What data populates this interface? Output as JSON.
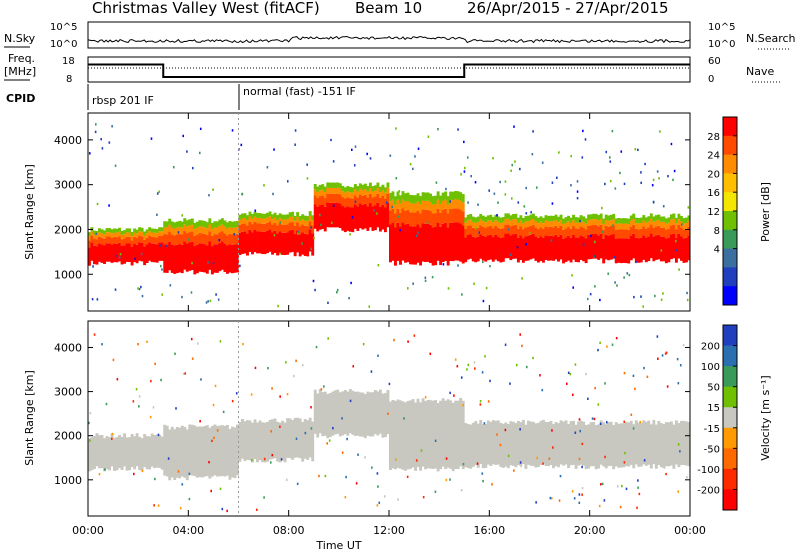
{
  "header": {
    "station": "Christmas Valley West (fitACF)",
    "beam": "Beam 10",
    "date_range": "26/Apr/2015 - 27/Apr/2015"
  },
  "summary_panels": {
    "nsky_label": "N.Sky",
    "nsky_ticks": [
      "10^5",
      "10^0"
    ],
    "nsearch_label": "N.Search",
    "nsearch_ticks": [
      "10^5",
      "10^0"
    ],
    "freq_label": [
      "Freq.",
      "[MHz]"
    ],
    "freq_ticks": [
      "18",
      "8"
    ],
    "nave_label": "Nave",
    "nave_ticks": [
      "60",
      "0"
    ],
    "cpid_label": "CPID",
    "cpid_segments": [
      {
        "label": "rbsp 201 IF",
        "start_hour": 0
      },
      {
        "label": "normal (fast) -151 IF",
        "start_hour": 6
      }
    ],
    "freq_trace": [
      {
        "from_hour": 0,
        "to_hour": 3,
        "mhz": 15
      },
      {
        "from_hour": 3,
        "to_hour": 15,
        "mhz": 10
      },
      {
        "from_hour": 15,
        "to_hour": 24,
        "mhz": 15
      }
    ]
  },
  "chart_data": [
    {
      "type": "heatmap",
      "name": "power",
      "ylabel": "Slant Range [km]",
      "x_ticks": [
        "00:00",
        "04:00",
        "08:00",
        "12:00",
        "16:00",
        "20:00",
        "00:00"
      ],
      "x_hours": [
        0,
        4,
        8,
        12,
        16,
        20,
        24
      ],
      "y_ticks": [
        1000,
        2000,
        3000,
        4000
      ],
      "ylim": [
        180,
        4600
      ],
      "xlim": [
        0,
        24
      ],
      "colorbar": {
        "label": "Power [dB]",
        "ticks": [
          "28",
          "24",
          "20",
          "16",
          "12",
          "8",
          "4"
        ],
        "colors": [
          "#ff0000",
          "#ff4a00",
          "#ff8c00",
          "#ffbf00",
          "#f5e600",
          "#6ec000",
          "#3a9a5a",
          "#3a6fa0",
          "#1f3fbf",
          "#0000ff"
        ]
      },
      "bands": [
        {
          "from_hour": 0,
          "to_hour": 3,
          "lower_km": 1250,
          "upper_km": 2000,
          "level": "high"
        },
        {
          "from_hour": 3,
          "to_hour": 6,
          "lower_km": 1050,
          "upper_km": 2200,
          "level": "high"
        },
        {
          "from_hour": 6,
          "to_hour": 9,
          "lower_km": 1450,
          "upper_km": 2350,
          "level": "high"
        },
        {
          "from_hour": 9,
          "to_hour": 12,
          "lower_km": 2000,
          "upper_km": 3000,
          "level": "high"
        },
        {
          "from_hour": 12,
          "to_hour": 15,
          "lower_km": 1250,
          "upper_km": 2800,
          "level": "high"
        },
        {
          "from_hour": 15,
          "to_hour": 24,
          "lower_km": 1300,
          "upper_km": 2300,
          "level": "high"
        }
      ]
    },
    {
      "type": "heatmap",
      "name": "velocity",
      "ylabel": "Slant Range [km]",
      "x_ticks": [
        "00:00",
        "04:00",
        "08:00",
        "12:00",
        "16:00",
        "20:00",
        "00:00"
      ],
      "x_hours": [
        0,
        4,
        8,
        12,
        16,
        20,
        24
      ],
      "y_ticks": [
        1000,
        2000,
        3000,
        4000
      ],
      "ylim": [
        180,
        4600
      ],
      "xlim": [
        0,
        24
      ],
      "xlabel": "Time UT",
      "colorbar": {
        "label": "Velocity [m s⁻¹]",
        "ticks": [
          "200",
          "100",
          "50",
          "15",
          "-15",
          "-50",
          "-100",
          "-200"
        ],
        "colors": [
          "#1f3fbf",
          "#2a6fb0",
          "#3a9a5a",
          "#6ec000",
          "#c8c8c0",
          "#ff9a00",
          "#ff6a00",
          "#ff2a00",
          "#ff0000"
        ]
      },
      "bands": [
        {
          "from_hour": 0,
          "to_hour": 3,
          "lower_km": 1250,
          "upper_km": 2000,
          "level": "ground"
        },
        {
          "from_hour": 3,
          "to_hour": 6,
          "lower_km": 1050,
          "upper_km": 2200,
          "level": "ground"
        },
        {
          "from_hour": 6,
          "to_hour": 9,
          "lower_km": 1450,
          "upper_km": 2350,
          "level": "ground"
        },
        {
          "from_hour": 9,
          "to_hour": 12,
          "lower_km": 2000,
          "upper_km": 3000,
          "level": "ground"
        },
        {
          "from_hour": 12,
          "to_hour": 15,
          "lower_km": 1250,
          "upper_km": 2800,
          "level": "ground"
        },
        {
          "from_hour": 15,
          "to_hour": 24,
          "lower_km": 1300,
          "upper_km": 2300,
          "level": "ground"
        }
      ]
    }
  ]
}
